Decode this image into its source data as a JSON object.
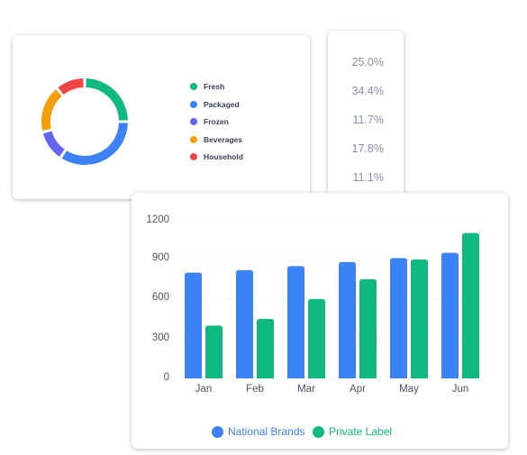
{
  "donut": {
    "segments": [
      {
        "label": "Fresh",
        "value": 25.0,
        "color": "#10b981"
      },
      {
        "label": "Packaged",
        "value": 34.4,
        "color": "#3b82f6"
      },
      {
        "label": "Frozen",
        "value": 11.7,
        "color": "#6366f1"
      },
      {
        "label": "Beverages",
        "value": 17.8,
        "color": "#f59e0b"
      },
      {
        "label": "Household",
        "value": 11.1,
        "color": "#ef4444"
      }
    ]
  },
  "percentages": [
    "25.0%",
    "34.4%",
    "11.7%",
    "17.8%",
    "11.1%"
  ],
  "chart_data": {
    "type": "bar",
    "categories": [
      "Jan",
      "Feb",
      "Mar",
      "Apr",
      "May",
      "Jun"
    ],
    "series": [
      {
        "name": "National Brands",
        "color": "#3b82f6",
        "values": [
          800,
          820,
          850,
          880,
          910,
          950
        ]
      },
      {
        "name": "Private Label",
        "color": "#10b981",
        "values": [
          400,
          450,
          600,
          750,
          900,
          1100
        ]
      }
    ],
    "yticks": [
      "1200",
      "900",
      "600",
      "300",
      "0"
    ],
    "ylim": [
      0,
      1200
    ],
    "grid": true,
    "legend": "bottom-center",
    "title": "",
    "xlabel": "",
    "ylabel": ""
  }
}
